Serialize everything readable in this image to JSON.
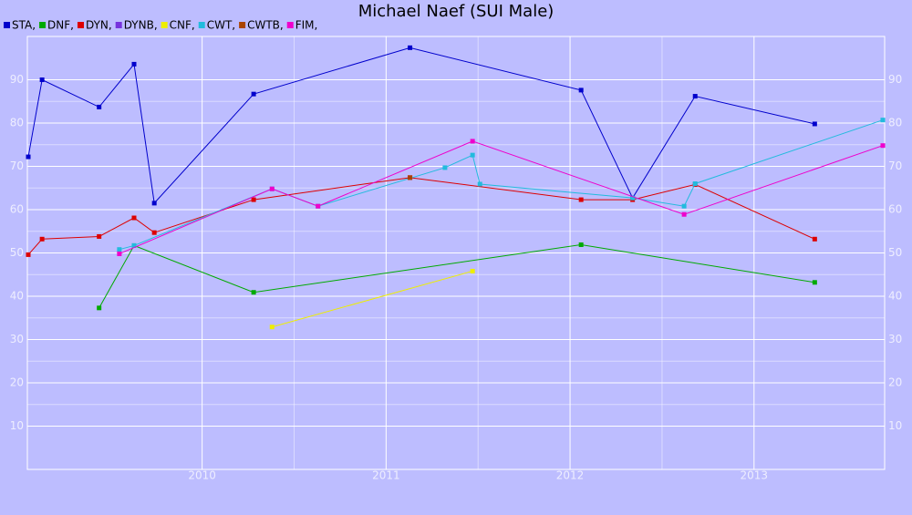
{
  "chart_data": {
    "type": "line",
    "title": "Michael Naef (SUI Male)",
    "xlim": [
      2009.05,
      2013.71
    ],
    "xticks": [
      2010,
      2011,
      2012,
      2013
    ],
    "ylim": [
      0,
      100
    ],
    "yticks": [
      10,
      20,
      30,
      40,
      50,
      60,
      70,
      80,
      90
    ],
    "grid": true,
    "legend": "top-left",
    "series": [
      {
        "name": "STA,",
        "color": "#0000cc",
        "x": [
          2009.055,
          2009.13,
          2009.44,
          2009.63,
          2009.74,
          2010.28,
          2011.13,
          2012.06,
          2012.34,
          2012.68,
          2013.33
        ],
        "values": [
          72.2,
          90,
          83.7,
          93.6,
          61.5,
          86.7,
          97.4,
          87.6,
          62.7,
          86.2,
          79.8
        ]
      },
      {
        "name": "DNF,",
        "color": "#00aa00",
        "x": [
          2009.44,
          2009.63,
          2010.28,
          2012.06,
          2013.33
        ],
        "values": [
          37.3,
          51.7,
          40.9,
          51.9,
          43.2
        ]
      },
      {
        "name": "DYN,",
        "color": "#dd0000",
        "x": [
          2009.055,
          2009.13,
          2009.44,
          2009.63,
          2009.74,
          2010.28,
          2011.13,
          2012.06,
          2012.34,
          2012.68,
          2013.33
        ],
        "values": [
          49.6,
          53.2,
          53.8,
          58.1,
          54.7,
          62.3,
          67.4,
          62.3,
          62.3,
          65.8,
          53.2
        ]
      },
      {
        "name": "DYNB,",
        "color": "#7733dd",
        "x": [],
        "values": []
      },
      {
        "name": "CNF,",
        "color": "#eeee00",
        "x": [
          2010.38,
          2011.47
        ],
        "values": [
          32.9,
          45.8
        ]
      },
      {
        "name": "CWT,",
        "color": "#22bbdd",
        "x": [
          2009.55,
          2009.63,
          2010.38,
          2010.63,
          2011.32,
          2011.47,
          2011.51,
          2012.34,
          2012.62,
          2012.68,
          2013.7
        ],
        "values": [
          50.8,
          51.7,
          64.8,
          60.8,
          69.7,
          72.6,
          65.9,
          62.7,
          60.8,
          66,
          80.7
        ]
      },
      {
        "name": "CWTB,",
        "color": "#aa4400",
        "x": [
          2011.13
        ],
        "values": [
          67.4
        ]
      },
      {
        "name": "FIM,",
        "color": "#ee00cc",
        "x": [
          2009.55,
          2010.38,
          2010.63,
          2011.47,
          2012.62,
          2013.7
        ],
        "values": [
          49.8,
          64.8,
          60.8,
          75.8,
          58.9,
          74.8
        ]
      }
    ]
  }
}
